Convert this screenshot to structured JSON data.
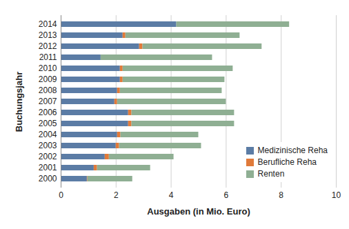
{
  "chart_data": {
    "type": "bar",
    "orientation": "horizontal",
    "stacked": true,
    "x_label": "Ausgaben (in Mio. Euro)",
    "y_label": "Buchungsjahr",
    "categories": [
      "2000",
      "2001",
      "2002",
      "2003",
      "2004",
      "2005",
      "2006",
      "2007",
      "2008",
      "2009",
      "2010",
      "2011",
      "2012",
      "2013",
      "2014"
    ],
    "series": [
      {
        "name": "Medizinische Reha",
        "color": "#5b7ca5",
        "values": [
          0.95,
          1.2,
          1.6,
          2.0,
          2.05,
          2.45,
          2.45,
          1.95,
          2.05,
          2.15,
          2.15,
          1.45,
          2.85,
          2.25,
          4.2
        ]
      },
      {
        "name": "Berufliche Reha",
        "color": "#e07a3a",
        "values": [
          0.02,
          0.12,
          0.15,
          0.12,
          0.12,
          0.12,
          0.12,
          0.1,
          0.1,
          0.1,
          0.1,
          0,
          0.12,
          0.1,
          0
        ]
      },
      {
        "name": "Renten",
        "color": "#8faf93",
        "values": [
          1.63,
          1.93,
          2.35,
          2.98,
          2.83,
          3.73,
          3.73,
          3.95,
          3.7,
          3.7,
          4.0,
          4.05,
          4.33,
          4.15,
          4.1
        ]
      }
    ],
    "xlim": [
      0,
      10
    ],
    "xticks": [
      0,
      2,
      4,
      6,
      8,
      10
    ],
    "grid": true,
    "legend": "bottom-right"
  }
}
